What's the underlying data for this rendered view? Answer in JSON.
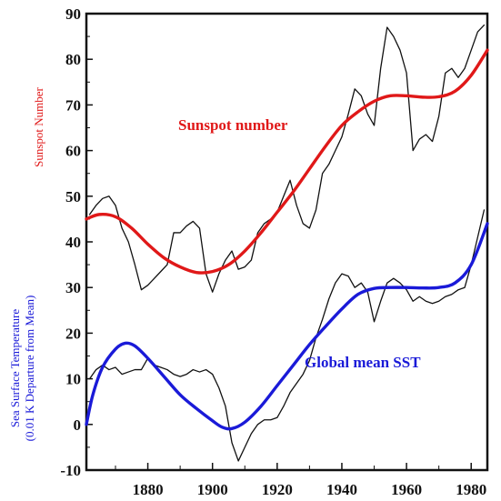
{
  "chart_data": {
    "type": "line",
    "title": "",
    "xlabel": "",
    "ylabel_left_top": "Sunspot Number",
    "ylabel_left_bottom_line1": "Sea Surface Temperature",
    "ylabel_left_bottom_line2": "(0.01 K Departure from Mean)",
    "xlim": [
      1861,
      1985
    ],
    "ylim": [
      -10,
      90
    ],
    "x_ticks": [
      1880,
      1900,
      1920,
      1940,
      1960,
      1980
    ],
    "y_ticks": [
      -10,
      0,
      10,
      20,
      30,
      40,
      50,
      60,
      70,
      80,
      90
    ],
    "grid": false,
    "colors": {
      "sunspot_smooth": "#e01818",
      "sst_smooth": "#1a1ad8",
      "raw": "#111111",
      "sunspot_label": "#e01818",
      "sst_label": "#1a1ad8"
    },
    "series": [
      {
        "name": "Sunspot number",
        "kind": "smooth",
        "x": [
          1861,
          1865,
          1870,
          1875,
          1880,
          1885,
          1890,
          1895,
          1900,
          1905,
          1910,
          1915,
          1920,
          1925,
          1930,
          1935,
          1940,
          1945,
          1950,
          1955,
          1960,
          1965,
          1970,
          1975,
          1980,
          1985
        ],
        "y": [
          45,
          46,
          45.5,
          43,
          39.5,
          36.5,
          34.5,
          33.3,
          33.5,
          35,
          38,
          42,
          46.5,
          51,
          56,
          61,
          65.5,
          68.5,
          70.8,
          72,
          72,
          71.7,
          71.8,
          73,
          76.5,
          82
        ]
      },
      {
        "name": "Global mean SST",
        "kind": "smooth",
        "x": [
          1861,
          1863,
          1866,
          1870,
          1873,
          1876,
          1880,
          1885,
          1890,
          1895,
          1900,
          1903,
          1906,
          1910,
          1915,
          1920,
          1925,
          1930,
          1935,
          1940,
          1945,
          1950,
          1955,
          1960,
          1965,
          1970,
          1975,
          1980,
          1985
        ],
        "y": [
          0,
          6.5,
          12.5,
          16.5,
          17.8,
          17.2,
          14.5,
          10.5,
          6.5,
          3.5,
          0.8,
          -0.6,
          -0.9,
          0.5,
          4,
          8.5,
          13,
          17.5,
          21.5,
          25.3,
          28.5,
          29.8,
          30,
          30,
          29.9,
          30,
          31,
          35,
          44
        ]
      },
      {
        "name": "",
        "kind": "raw",
        "x": [
          1862,
          1864,
          1866,
          1868,
          1870,
          1872,
          1874,
          1876,
          1878,
          1880,
          1882,
          1884,
          1886,
          1888,
          1890,
          1892,
          1894,
          1896,
          1898,
          1900,
          1902,
          1904,
          1906,
          1908,
          1910,
          1912,
          1914,
          1916,
          1918,
          1920,
          1922,
          1924,
          1926,
          1928,
          1930,
          1932,
          1934,
          1936,
          1938,
          1940,
          1942,
          1944,
          1946,
          1948,
          1950,
          1952,
          1954,
          1956,
          1958,
          1960,
          1962,
          1964,
          1966,
          1968,
          1970,
          1972,
          1974,
          1976,
          1978,
          1980,
          1982,
          1984
        ],
        "y": [
          46,
          48,
          49.5,
          50,
          48,
          43,
          40,
          35,
          29.5,
          30.5,
          32,
          33.5,
          35,
          42,
          42,
          43.5,
          44.5,
          43,
          33,
          29,
          33,
          36,
          38,
          34,
          34.5,
          36,
          42,
          44,
          45,
          46.5,
          50,
          53.5,
          48,
          44,
          43,
          47,
          55,
          57,
          60,
          63,
          68,
          73.5,
          72,
          68,
          65.5,
          78,
          87,
          85,
          82,
          77,
          60,
          62.5,
          63.5,
          62,
          67.5,
          77,
          78,
          76,
          78,
          82,
          86,
          87.5
        ]
      },
      {
        "name": "",
        "kind": "raw",
        "x": [
          1862,
          1864,
          1866,
          1868,
          1870,
          1872,
          1874,
          1876,
          1878,
          1880,
          1882,
          1884,
          1886,
          1888,
          1890,
          1892,
          1894,
          1896,
          1898,
          1900,
          1902,
          1904,
          1906,
          1908,
          1910,
          1912,
          1914,
          1916,
          1918,
          1920,
          1922,
          1924,
          1926,
          1928,
          1930,
          1932,
          1934,
          1936,
          1938,
          1940,
          1942,
          1944,
          1946,
          1948,
          1950,
          1952,
          1954,
          1956,
          1958,
          1960,
          1962,
          1964,
          1966,
          1968,
          1970,
          1972,
          1974,
          1976,
          1978,
          1980,
          1982,
          1984
        ],
        "y": [
          10,
          12,
          13,
          12,
          12.5,
          11,
          11.5,
          12,
          12,
          14.5,
          13,
          12.5,
          12,
          11,
          10.5,
          11,
          12,
          11.5,
          12,
          11,
          8,
          4,
          -4,
          -8,
          -5,
          -2,
          0,
          1,
          1,
          1.5,
          4,
          7,
          9,
          11,
          14,
          19,
          23,
          27.5,
          31,
          33,
          32.5,
          30,
          31,
          29,
          22.5,
          27,
          31,
          32,
          31,
          29.5,
          27,
          28,
          27,
          26.5,
          27,
          28,
          28.5,
          29.5,
          30,
          35,
          41,
          47
        ]
      }
    ]
  }
}
